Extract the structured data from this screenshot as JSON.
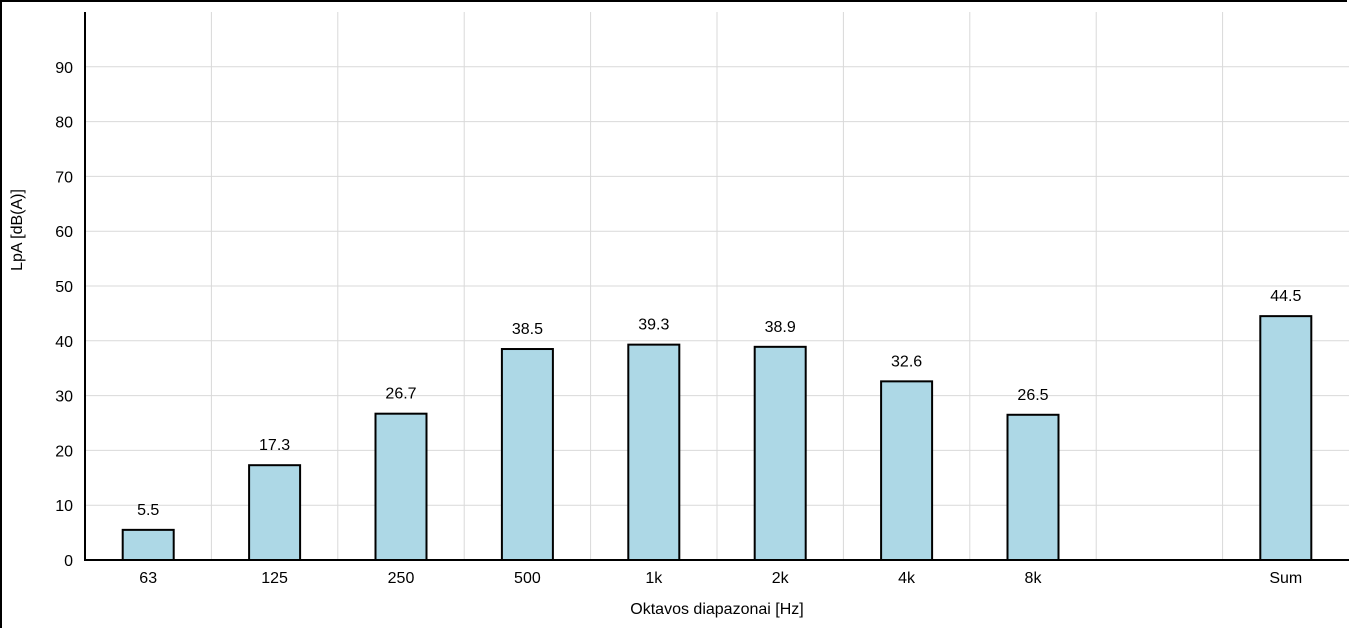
{
  "chart_data": {
    "type": "bar",
    "categories": [
      "63",
      "125",
      "250",
      "500",
      "1k",
      "2k",
      "4k",
      "8k",
      "",
      "Sum"
    ],
    "values": [
      5.5,
      17.3,
      26.7,
      38.5,
      39.3,
      38.9,
      32.6,
      26.5,
      0,
      44.5
    ],
    "data_labels": [
      "5.5",
      "17.3",
      "26.7",
      "38.5",
      "39.3",
      "38.9",
      "32.6",
      "26.5",
      "",
      "44.5"
    ],
    "xlabel": "Oktavos diapazonai [Hz]",
    "ylabel": "LpA [dB(A)]",
    "ylim": [
      0,
      100
    ],
    "yticks": [
      0,
      10,
      20,
      30,
      40,
      50,
      60,
      70,
      80,
      90
    ],
    "grid": true,
    "legend": "none",
    "colors": {
      "bar_fill": "#add8e6",
      "bar_stroke": "#000000",
      "grid": "#d9d9d9"
    }
  }
}
